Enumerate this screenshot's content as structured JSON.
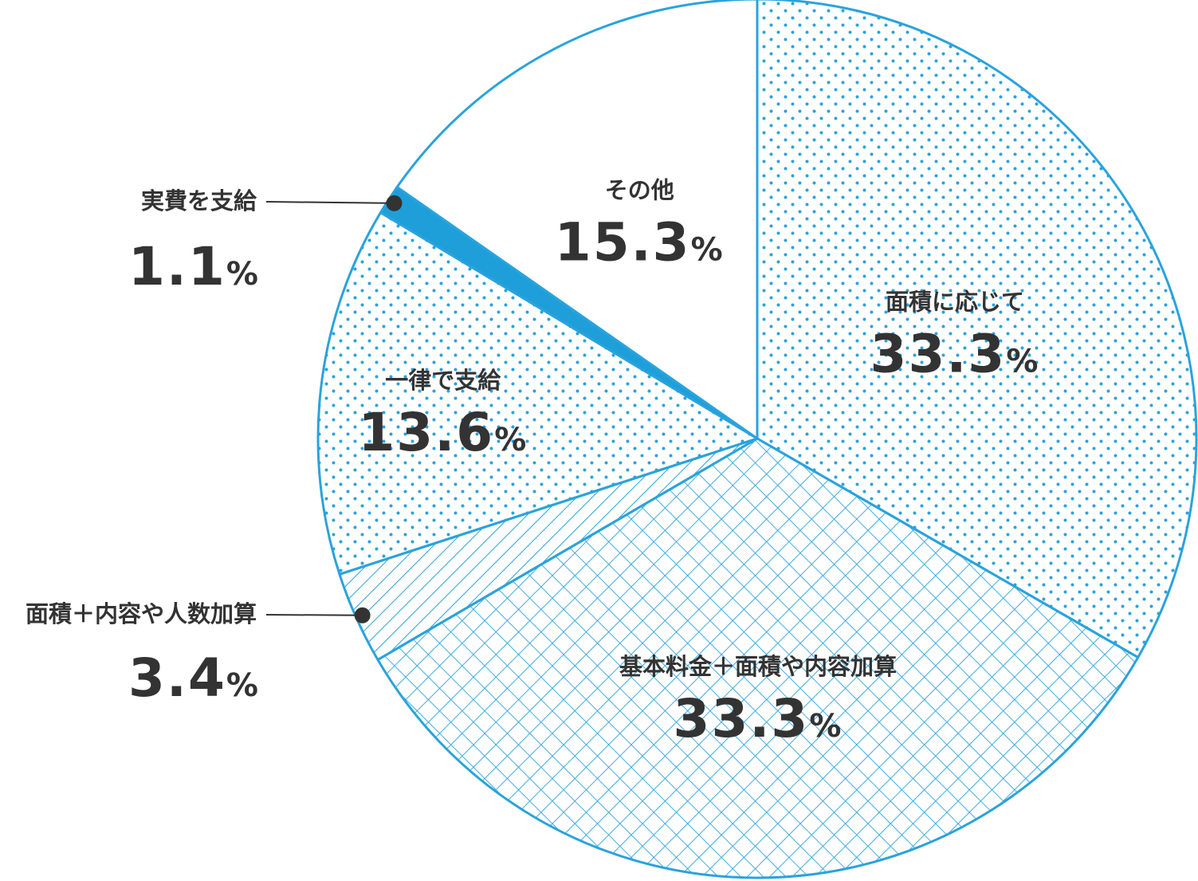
{
  "chart_data": {
    "type": "pie",
    "start_angle_deg": 0,
    "direction": "clockwise",
    "colors": {
      "stroke": "#2aa3dc",
      "fill_solid": "#1e9fda",
      "background": "#ffffff",
      "text": "#333333"
    },
    "slices": [
      {
        "label": "面積に応じて",
        "value": 33.3,
        "value_text": "33.3",
        "unit": "%",
        "pattern": "dots"
      },
      {
        "label": "基本料金＋面積や内容加算",
        "value": 33.3,
        "value_text": "33.3",
        "unit": "%",
        "pattern": "crosshatch"
      },
      {
        "label": "面積＋内容や人数加算",
        "value": 3.4,
        "value_text": "3.4",
        "unit": "%",
        "pattern": "diagonal",
        "callout": true
      },
      {
        "label": "一律で支給",
        "value": 13.6,
        "value_text": "13.6",
        "unit": "%",
        "pattern": "dots"
      },
      {
        "label": "実費を支給",
        "value": 1.1,
        "value_text": "1.1",
        "unit": "%",
        "pattern": "solid",
        "callout": true
      },
      {
        "label": "その他",
        "value": 15.3,
        "value_text": "15.3",
        "unit": "%",
        "pattern": "none"
      }
    ]
  }
}
